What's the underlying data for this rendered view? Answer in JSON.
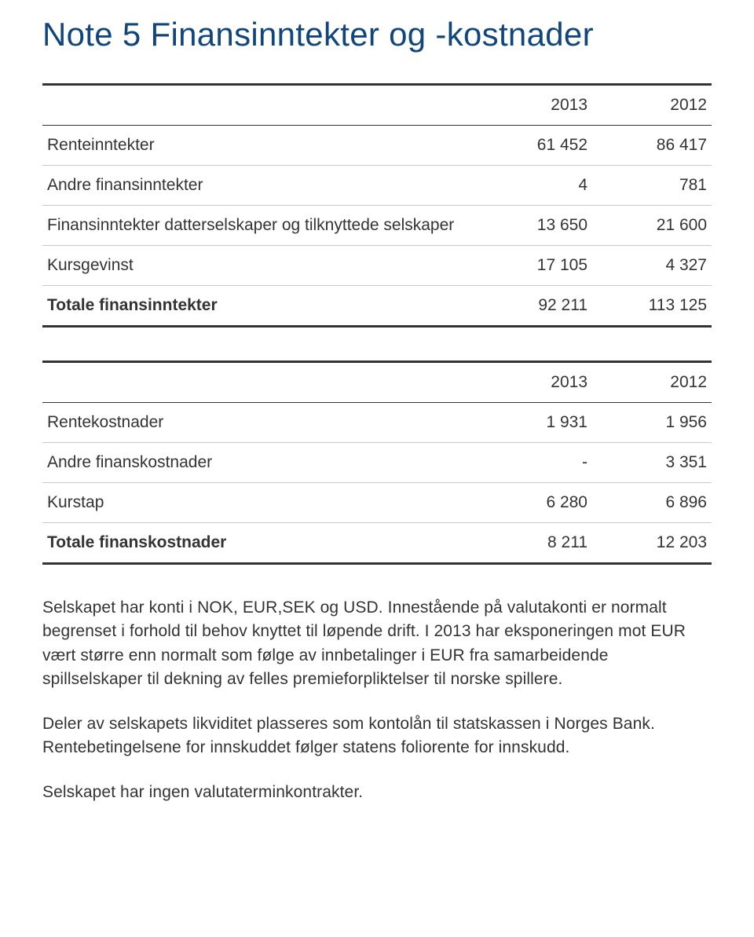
{
  "title": "Note 5 Finansinntekter og -kostnader",
  "table1": {
    "year1": "2013",
    "year2": "2012",
    "rows": [
      {
        "label": "Renteinntekter",
        "v1": "61 452",
        "v2": "86 417"
      },
      {
        "label": "Andre finansinntekter",
        "v1": "4",
        "v2": "781"
      },
      {
        "label": "Finansinntekter datterselskaper og tilknyttede selskaper",
        "v1": "13 650",
        "v2": "21 600"
      },
      {
        "label": "Kursgevinst",
        "v1": "17 105",
        "v2": "4 327"
      }
    ],
    "total": {
      "label": "Totale finansinntekter",
      "v1": "92 211",
      "v2": "113 125"
    }
  },
  "table2": {
    "year1": "2013",
    "year2": "2012",
    "rows": [
      {
        "label": "Rentekostnader",
        "v1": "1 931",
        "v2": "1 956"
      },
      {
        "label": "Andre finanskostnader",
        "v1": "-",
        "v2": "3 351"
      },
      {
        "label": "Kurstap",
        "v1": "6 280",
        "v2": "6 896"
      }
    ],
    "total": {
      "label": "Totale finanskostnader",
      "v1": "8 211",
      "v2": "12 203"
    }
  },
  "para1": "Selskapet har konti i NOK, EUR,SEK og USD. Innestående på valutakonti er normalt begrenset i forhold til behov knyttet til løpende drift. I 2013 har eksponeringen mot EUR vært større enn normalt som følge av innbetalinger i EUR fra samarbeidende spillselskaper til dekning av felles premieforpliktelser til norske spillere.",
  "para2": "Deler av selskapets likviditet plasseres som kontolån til statskassen i Norges Bank. Rentebetingelsene for innskuddet følger statens foliorente for innskudd.",
  "para3": "Selskapet har ingen valutaterminkontrakter."
}
